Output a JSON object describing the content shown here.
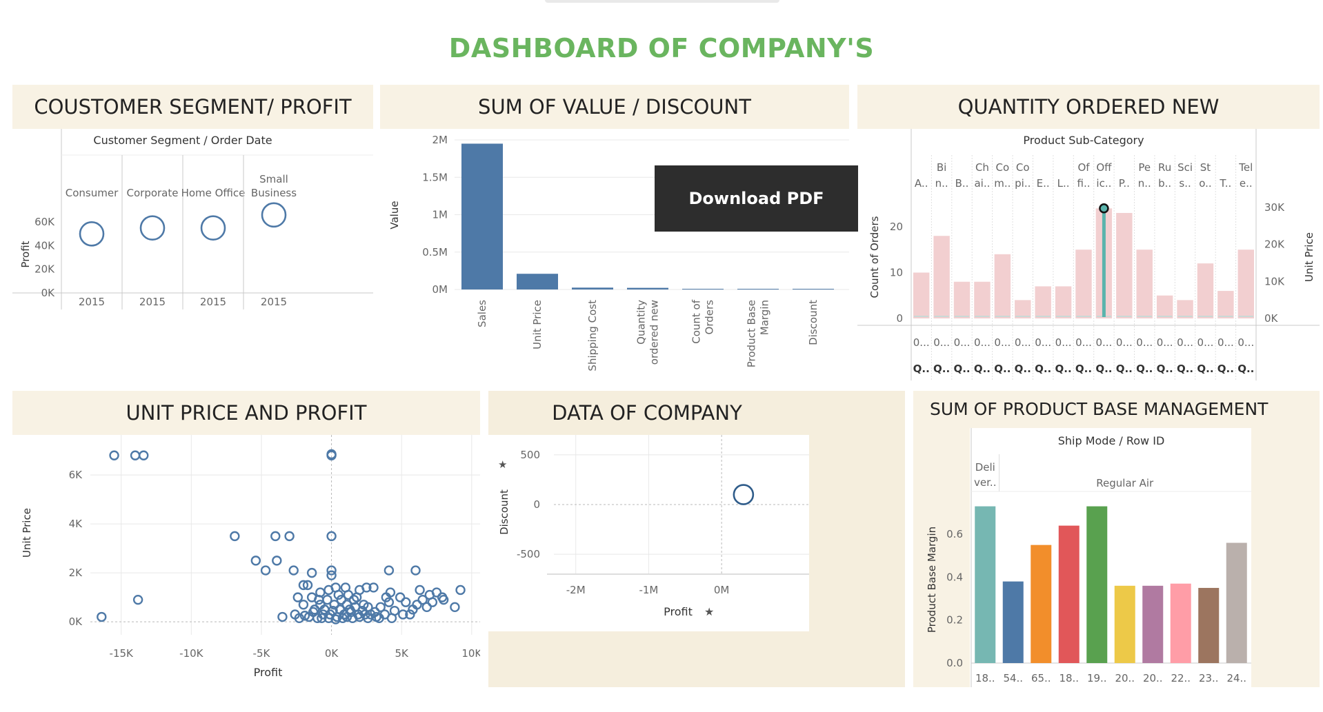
{
  "dashboard": {
    "title": "DASHBOARD OF COMPANY'S"
  },
  "panels": {
    "segment": {
      "title": "COUSTOMER SEGMENT/ PROFIT"
    },
    "value": {
      "title": "SUM OF VALUE / DISCOUNT"
    },
    "quantity": {
      "title": "QUANTITY ORDERED NEW"
    },
    "unitprice": {
      "title": "UNIT PRICE AND PROFIT"
    },
    "company": {
      "title": "DATA OF COMPANY"
    },
    "pbm": {
      "title": "SUM OF PRODUCT BASE MANAGEMENT"
    }
  },
  "download_button": {
    "label": "Download PDF"
  },
  "colors": {
    "accent_green": "#6ab55f",
    "bar_blue": "#4e79a7",
    "panel_bg": "#f8f2e4",
    "pink_bar": "#f2cfd0",
    "teal_line": "#5ab4ac"
  },
  "chart_data": [
    {
      "id": "segment",
      "type": "scatter",
      "header": "Customer Segment  /  Order Date",
      "categories": [
        "Consumer",
        "Corporate",
        "Home Office",
        "Small Business"
      ],
      "category_lines": [
        [
          "Consumer"
        ],
        [
          "Corporate"
        ],
        [
          "Home Office"
        ],
        [
          "Small",
          "Business"
        ]
      ],
      "x_labels": [
        "2015",
        "2015",
        "2015",
        "2015"
      ],
      "values": [
        50000,
        55000,
        55000,
        66000
      ],
      "ylabel": "Profit",
      "yticks": [
        0,
        20000,
        40000,
        60000
      ],
      "ytick_labels": [
        "0K",
        "20K",
        "40K",
        "60K"
      ],
      "ylim": [
        0,
        70000
      ]
    },
    {
      "id": "value",
      "type": "bar",
      "ylabel": "Value",
      "categories": [
        "Sales",
        "Unit Price",
        "Shipping Cost",
        "Quantity ordered new",
        "Count of Orders",
        "Product Base Margin",
        "Discount"
      ],
      "category_lines": [
        [
          "Sales"
        ],
        [
          "Unit Price"
        ],
        [
          "Shipping Cost"
        ],
        [
          "Quantity",
          "ordered new"
        ],
        [
          "Count of",
          "Orders"
        ],
        [
          "Product Base",
          "Margin"
        ],
        [
          "Discount"
        ]
      ],
      "values": [
        1950000,
        210000,
        25000,
        22000,
        1950,
        500,
        400
      ],
      "yticks": [
        0,
        500000,
        1000000,
        1500000,
        2000000
      ],
      "ytick_labels": [
        "0M",
        "0.5M",
        "1M",
        "1.5M",
        "2M"
      ],
      "ylim": [
        0,
        2000000
      ]
    },
    {
      "id": "quantity",
      "type": "bar",
      "header": "Product Sub-Category",
      "top_labels": [
        [
          "",
          "A.."
        ],
        [
          "Bi",
          "n.."
        ],
        [
          "",
          "B.."
        ],
        [
          "Ch",
          "ai.."
        ],
        [
          "Co",
          "m.."
        ],
        [
          "Co",
          "pi.."
        ],
        [
          "",
          "E.."
        ],
        [
          "",
          "L.."
        ],
        [
          "Of",
          "fi.."
        ],
        [
          "Off",
          "ic.."
        ],
        [
          "",
          "P.."
        ],
        [
          "Pe",
          "n.."
        ],
        [
          "Ru",
          "b.."
        ],
        [
          "Sci",
          "s.."
        ],
        [
          "St",
          "o.."
        ],
        [
          "",
          "T.."
        ],
        [
          "Tel",
          "e.."
        ]
      ],
      "bottom_labels": [
        "0...",
        "0...",
        "0...",
        "0...",
        "0...",
        "0...",
        "0...",
        "0...",
        "0...",
        "0...",
        "0...",
        "0...",
        "0...",
        "0...",
        "0...",
        "0...",
        "0..."
      ],
      "bottom_labels2": [
        "Q..",
        "Q..",
        "Q..",
        "Q..",
        "Q..",
        "Q..",
        "Q..",
        "Q..",
        "Q..",
        "Q..",
        "Q..",
        "Q..",
        "Q..",
        "Q..",
        "Q..",
        "Q..",
        "Q.."
      ],
      "values": [
        10,
        18,
        8,
        8,
        14,
        4,
        7,
        7,
        15,
        24,
        23,
        15,
        5,
        4,
        12,
        6,
        15
      ],
      "ylabel": "Count of Orders",
      "yticks": [
        0,
        10,
        20
      ],
      "ytick_labels": [
        "0",
        "10",
        "20"
      ],
      "ylim": [
        0,
        26
      ],
      "y2label": "Unit Price",
      "y2ticks": [
        0,
        10000,
        20000,
        30000
      ],
      "y2tick_labels": [
        "0K",
        "10K",
        "20K",
        "30K"
      ],
      "y2lim": [
        0,
        35000
      ],
      "highlight_point": {
        "category_index": 9,
        "value": 24
      }
    },
    {
      "id": "unitprice",
      "type": "scatter",
      "xlabel": "Profit",
      "ylabel": "Unit Price",
      "xticks": [
        -15000,
        -10000,
        -5000,
        0,
        5000,
        10000
      ],
      "xtick_labels": [
        "-15K",
        "-10K",
        "-5K",
        "0K",
        "5K",
        "10K"
      ],
      "yticks": [
        0,
        2000,
        4000,
        6000
      ],
      "ytick_labels": [
        "0K",
        "2K",
        "4K",
        "6K"
      ],
      "xlim": [
        -17200,
        10600
      ],
      "ylim": [
        -250,
        7300
      ],
      "points": [
        [
          -15500,
          6800
        ],
        [
          -14000,
          6800
        ],
        [
          -13400,
          6800
        ],
        [
          0,
          6800
        ],
        [
          0,
          6850
        ],
        [
          -6900,
          3500
        ],
        [
          -4000,
          3500
        ],
        [
          -3000,
          3500
        ],
        [
          0,
          3500
        ],
        [
          -5400,
          2500
        ],
        [
          -3900,
          2500
        ],
        [
          -4700,
          2100
        ],
        [
          -2700,
          2100
        ],
        [
          -13800,
          900
        ],
        [
          -16400,
          200
        ],
        [
          -2000,
          1500
        ],
        [
          -2400,
          1000
        ],
        [
          -1400,
          1000
        ],
        [
          -1700,
          1500
        ],
        [
          -1400,
          2000
        ],
        [
          0,
          2100
        ],
        [
          0,
          1900
        ],
        [
          300,
          1400
        ],
        [
          1000,
          1400
        ],
        [
          2500,
          1400
        ],
        [
          3000,
          1400
        ],
        [
          2000,
          1300
        ],
        [
          3900,
          1000
        ],
        [
          4100,
          800
        ],
        [
          4200,
          1200
        ],
        [
          4900,
          1000
        ],
        [
          5300,
          800
        ],
        [
          5800,
          500
        ],
        [
          6100,
          700
        ],
        [
          6500,
          900
        ],
        [
          7000,
          1100
        ],
        [
          7500,
          1200
        ],
        [
          7900,
          1000
        ],
        [
          8000,
          900
        ],
        [
          9200,
          1300
        ],
        [
          8800,
          600
        ],
        [
          6000,
          2100
        ],
        [
          4100,
          2100
        ],
        [
          6300,
          1300
        ],
        [
          1100,
          700
        ],
        [
          1600,
          900
        ],
        [
          2600,
          600
        ],
        [
          3100,
          400
        ],
        [
          -2000,
          700
        ],
        [
          -1200,
          500
        ],
        [
          -800,
          700
        ],
        [
          -300,
          900
        ],
        [
          200,
          700
        ],
        [
          700,
          900
        ],
        [
          1300,
          500
        ],
        [
          1900,
          300
        ],
        [
          2300,
          700
        ],
        [
          2800,
          300
        ],
        [
          3500,
          600
        ],
        [
          -1600,
          200
        ],
        [
          -1000,
          150
        ],
        [
          -600,
          300
        ],
        [
          -200,
          150
        ],
        [
          400,
          200
        ],
        [
          900,
          300
        ],
        [
          1500,
          150
        ],
        [
          2000,
          200
        ],
        [
          2600,
          150
        ],
        [
          3200,
          200
        ],
        [
          3800,
          300
        ],
        [
          -2300,
          150
        ],
        [
          -1900,
          250
        ],
        [
          -500,
          500
        ],
        [
          100,
          450
        ],
        [
          600,
          500
        ],
        [
          1100,
          200
        ],
        [
          1700,
          600
        ],
        [
          2200,
          450
        ],
        [
          4500,
          450
        ],
        [
          5100,
          300
        ],
        [
          -2600,
          300
        ],
        [
          -1300,
          400
        ],
        [
          -700,
          150
        ],
        [
          -100,
          300
        ],
        [
          300,
          100
        ],
        [
          800,
          150
        ],
        [
          1400,
          400
        ],
        [
          2400,
          300
        ],
        [
          3400,
          150
        ],
        [
          4300,
          150
        ],
        [
          5600,
          300
        ],
        [
          -800,
          1200
        ],
        [
          -200,
          1300
        ],
        [
          500,
          1100
        ],
        [
          1800,
          1000
        ],
        [
          -3500,
          200
        ],
        [
          6800,
          600
        ],
        [
          7200,
          800
        ],
        [
          -900,
          900
        ],
        [
          1200,
          1100
        ]
      ]
    },
    {
      "id": "company",
      "type": "scatter",
      "xlabel": "Profit",
      "ylabel": "Discount",
      "xticks": [
        -2000000,
        -1000000,
        0
      ],
      "xtick_labels": [
        "-2M",
        "-1M",
        "0M"
      ],
      "yticks": [
        -500,
        0,
        500
      ],
      "ytick_labels": [
        "-500",
        "0",
        "500"
      ],
      "xlim": [
        -2300000,
        1200000
      ],
      "ylim": [
        -700,
        700
      ],
      "points": [
        [
          300000,
          100
        ]
      ]
    },
    {
      "id": "pbm",
      "type": "bar",
      "header": "Ship Mode  /  Row ID",
      "groups": [
        {
          "label_lines": [
            "Deli",
            "ver.."
          ],
          "count": 1
        },
        {
          "label_lines": [
            "Regular Air"
          ],
          "count": 9
        }
      ],
      "categories": [
        "18..",
        "54..",
        "65..",
        "18..",
        "19..",
        "20..",
        "20..",
        "22..",
        "23..",
        "24.."
      ],
      "values": [
        0.73,
        0.38,
        0.55,
        0.64,
        0.73,
        0.36,
        0.36,
        0.37,
        0.35,
        0.56
      ],
      "colors": [
        "#76b7b2",
        "#4e79a7",
        "#f28e2b",
        "#e15759",
        "#59a14f",
        "#edc948",
        "#b07aa1",
        "#ff9da7",
        "#9c755f",
        "#bab0ac"
      ],
      "ylabel": "Product Base Margin",
      "yticks": [
        0,
        0.2,
        0.4,
        0.6
      ],
      "ytick_labels": [
        "0.0",
        "0.2",
        "0.4",
        "0.6"
      ],
      "ylim": [
        0,
        0.78
      ]
    }
  ]
}
